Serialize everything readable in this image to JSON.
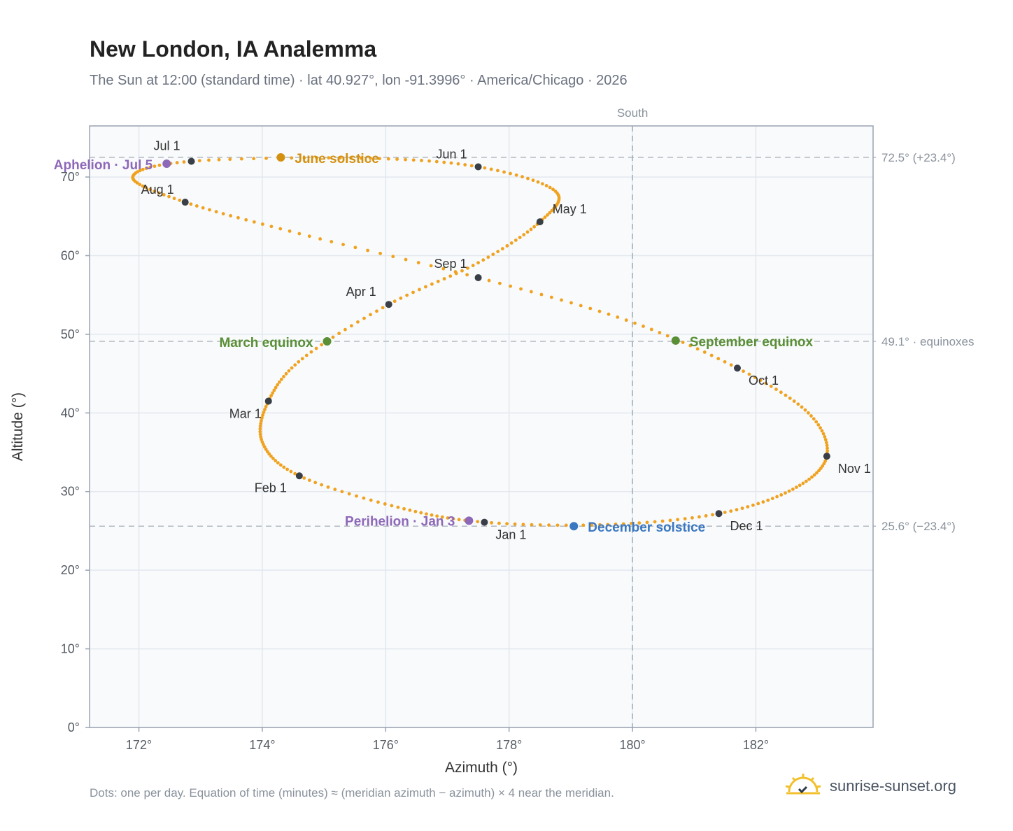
{
  "header": {
    "title": "New London, IA Analemma",
    "subtitle": "The Sun at 12:00 (standard time) · lat 40.927°, lon -91.3996° · America/Chicago · 2026"
  },
  "footer": {
    "note": "Dots: one per day. Equation of time (minutes) ≈ (meridian azimuth − azimuth) × 4 near the meridian.",
    "brand": "sunrise-sunset.org"
  },
  "colors": {
    "curve": "#f0a21f",
    "month_marker": "#3a3f47",
    "june_solstice": "#d4900e",
    "december_solstice": "#3b78c2",
    "equinox": "#5a8f35",
    "apsis": "#8e68b8",
    "plot_background": "#f8fafc",
    "grid": "#e3e8ee",
    "reference_line": "#b4bac2"
  },
  "chart_data": {
    "type": "scatter",
    "xlabel": "Azimuth (°)",
    "ylabel": "Altitude (°)",
    "xlim": [
      171.2,
      183.9
    ],
    "ylim": [
      0,
      76.5
    ],
    "x_ticks": [
      172,
      174,
      176,
      178,
      180,
      182
    ],
    "x_tick_labels": [
      "172°",
      "174°",
      "176°",
      "178°",
      "180°",
      "182°"
    ],
    "y_ticks": [
      0,
      10,
      20,
      30,
      40,
      50,
      60,
      70
    ],
    "y_tick_labels": [
      "0°",
      "10°",
      "20°",
      "30°",
      "40°",
      "50°",
      "60°",
      "70°"
    ],
    "grid": true,
    "meridian": {
      "x": 180,
      "label": "South"
    },
    "reference_lines": [
      {
        "y": 72.5,
        "label": "72.5° (+23.4°)"
      },
      {
        "y": 49.1,
        "label": "49.1° · equinoxes"
      },
      {
        "y": 25.6,
        "label": "25.6° (−23.4°)"
      }
    ],
    "monthly_markers": [
      {
        "label": "Jan 1",
        "az": 177.6,
        "alt": 26.1
      },
      {
        "label": "Feb 1",
        "az": 174.6,
        "alt": 32.0
      },
      {
        "label": "Mar 1",
        "az": 174.1,
        "alt": 41.5
      },
      {
        "label": "Apr 1",
        "az": 176.05,
        "alt": 53.8
      },
      {
        "label": "May 1",
        "az": 178.5,
        "alt": 64.3
      },
      {
        "label": "Jun 1",
        "az": 177.5,
        "alt": 71.3
      },
      {
        "label": "Jul 1",
        "az": 172.85,
        "alt": 72.0
      },
      {
        "label": "Aug 1",
        "az": 172.75,
        "alt": 66.8
      },
      {
        "label": "Sep 1",
        "az": 177.5,
        "alt": 57.2
      },
      {
        "label": "Oct 1",
        "az": 181.7,
        "alt": 45.7
      },
      {
        "label": "Nov 1",
        "az": 183.15,
        "alt": 34.5
      },
      {
        "label": "Dec 1",
        "az": 181.4,
        "alt": 27.2
      }
    ],
    "events": [
      {
        "label": "June solstice",
        "az": 174.3,
        "alt": 72.5,
        "color_key": "june_solstice"
      },
      {
        "label": "December solstice",
        "az": 179.05,
        "alt": 25.6,
        "color_key": "december_solstice"
      },
      {
        "label": "March equinox",
        "az": 175.05,
        "alt": 49.1,
        "color_key": "equinox"
      },
      {
        "label": "September equinox",
        "az": 180.7,
        "alt": 49.2,
        "color_key": "equinox"
      },
      {
        "label": "Aphelion · Jul 5",
        "az": 172.45,
        "alt": 71.7,
        "color_key": "apsis"
      },
      {
        "label": "Perihelion · Jan 3",
        "az": 177.35,
        "alt": 26.3,
        "color_key": "apsis"
      }
    ],
    "daily_path": [
      {
        "date": "Jan 1",
        "az": 177.6,
        "alt": 26.1
      },
      {
        "date": "Jan 15",
        "az": 176.2,
        "alt": 28.0
      },
      {
        "date": "Feb 1",
        "az": 174.6,
        "alt": 32.0
      },
      {
        "date": "Feb 15",
        "az": 174.0,
        "alt": 36.3
      },
      {
        "date": "Mar 1",
        "az": 174.1,
        "alt": 41.5
      },
      {
        "date": "Mar 15",
        "az": 174.65,
        "alt": 46.9
      },
      {
        "date": "Apr 1",
        "az": 176.05,
        "alt": 53.8
      },
      {
        "date": "Apr 15",
        "az": 177.5,
        "alt": 59.1
      },
      {
        "date": "May 1",
        "az": 178.5,
        "alt": 64.3
      },
      {
        "date": "May 15",
        "az": 178.75,
        "alt": 68.2
      },
      {
        "date": "Jun 1",
        "az": 177.5,
        "alt": 71.3
      },
      {
        "date": "Jun 15",
        "az": 175.6,
        "alt": 72.4
      },
      {
        "date": "Jul 1",
        "az": 172.85,
        "alt": 72.0
      },
      {
        "date": "Jul 15",
        "az": 171.9,
        "alt": 70.0
      },
      {
        "date": "Aug 1",
        "az": 172.75,
        "alt": 66.8
      },
      {
        "date": "Aug 15",
        "az": 174.6,
        "alt": 62.8
      },
      {
        "date": "Sep 1",
        "az": 177.5,
        "alt": 57.2
      },
      {
        "date": "Sep 15",
        "az": 179.9,
        "alt": 51.8
      },
      {
        "date": "Oct 1",
        "az": 181.7,
        "alt": 45.7
      },
      {
        "date": "Oct 15",
        "az": 182.85,
        "alt": 40.0
      },
      {
        "date": "Nov 1",
        "az": 183.15,
        "alt": 34.5
      },
      {
        "date": "Nov 15",
        "az": 182.6,
        "alt": 30.3
      },
      {
        "date": "Dec 1",
        "az": 181.4,
        "alt": 27.2
      },
      {
        "date": "Dec 15",
        "az": 179.6,
        "alt": 25.8
      },
      {
        "date": "Dec 31",
        "az": 177.65,
        "alt": 26.1
      }
    ]
  }
}
